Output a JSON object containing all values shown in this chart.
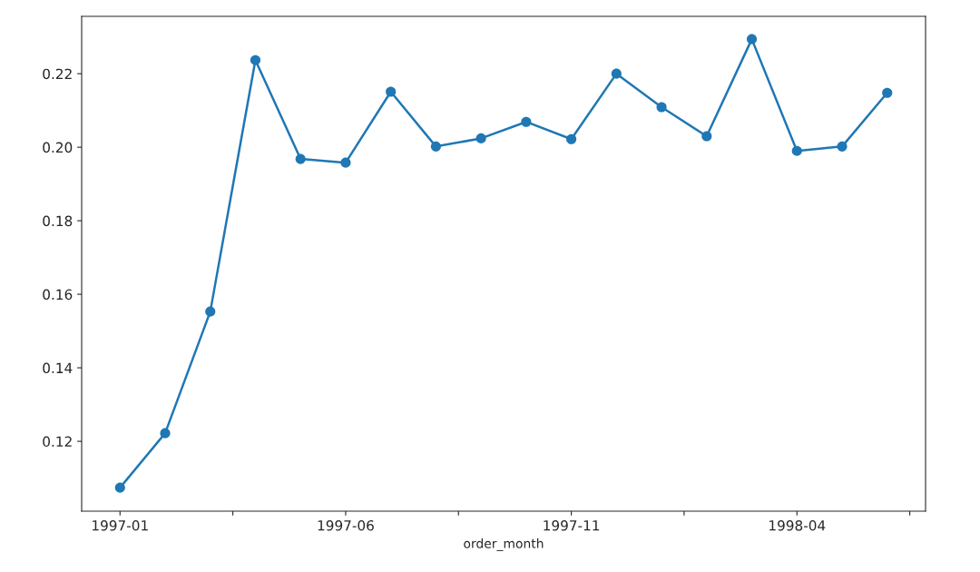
{
  "chart_data": {
    "type": "line",
    "xlabel": "order_month",
    "categories": [
      "1997-01",
      null,
      null,
      null,
      null,
      "1997-06",
      null,
      null,
      null,
      null,
      "1997-11",
      null,
      null,
      null,
      null,
      "1998-04",
      null,
      null
    ],
    "series": [
      {
        "color": "#1f77b4",
        "values": [
          0.1074,
          0.1222,
          0.1553,
          0.2237,
          0.1968,
          0.1958,
          0.2151,
          0.2002,
          0.2024,
          0.2069,
          0.2022,
          0.22,
          0.2109,
          0.203,
          0.2294,
          0.199,
          0.2002,
          0.2148
        ]
      }
    ],
    "ylim": [
      0.101,
      0.2356
    ],
    "yticks": [
      0.12,
      0.14,
      0.16,
      0.18,
      {
        "value": 0.2,
        "label": "0.20"
      },
      0.22
    ],
    "marker": "circle",
    "line_style": "solid",
    "grid": false,
    "legend": false
  }
}
